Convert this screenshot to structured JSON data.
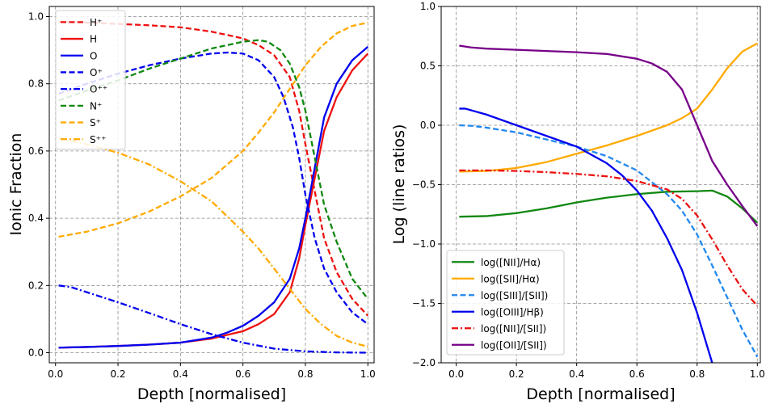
{
  "chart_data": [
    {
      "type": "line",
      "xlabel": "Depth [normalised]",
      "ylabel": "Ionic Fraction",
      "xlim": [
        -0.02,
        1.02
      ],
      "ylim": [
        -0.03,
        1.03
      ],
      "xticks": [
        0.0,
        0.2,
        0.4,
        0.6,
        0.8,
        1.0
      ],
      "yticks": [
        0.0,
        0.2,
        0.4,
        0.6,
        0.8,
        1.0
      ],
      "xtick_labels": [
        "0.0",
        "0.2",
        "0.4",
        "0.6",
        "0.8",
        "1.0"
      ],
      "ytick_labels": [
        "0.0",
        "0.2",
        "0.4",
        "0.6",
        "0.8",
        "1.0"
      ],
      "grid": true,
      "legend_position": "top-left",
      "series": [
        {
          "name": "H⁺",
          "color": "#ee1111",
          "dash": "dashed",
          "x": [
            0.01,
            0.1,
            0.2,
            0.3,
            0.4,
            0.5,
            0.6,
            0.65,
            0.7,
            0.75,
            0.78,
            0.8,
            0.83,
            0.86,
            0.9,
            0.95,
            1.0
          ],
          "y": [
            0.985,
            0.982,
            0.978,
            0.974,
            0.968,
            0.955,
            0.935,
            0.915,
            0.885,
            0.82,
            0.72,
            0.62,
            0.48,
            0.34,
            0.24,
            0.16,
            0.11
          ]
        },
        {
          "name": "H",
          "color": "#ee1111",
          "dash": "solid",
          "x": [
            0.01,
            0.1,
            0.2,
            0.3,
            0.4,
            0.5,
            0.6,
            0.65,
            0.7,
            0.75,
            0.78,
            0.8,
            0.83,
            0.86,
            0.9,
            0.95,
            1.0
          ],
          "y": [
            0.015,
            0.017,
            0.02,
            0.024,
            0.03,
            0.042,
            0.064,
            0.085,
            0.115,
            0.18,
            0.28,
            0.38,
            0.52,
            0.66,
            0.76,
            0.84,
            0.89
          ]
        },
        {
          "name": "O",
          "color": "#0000ee",
          "dash": "solid",
          "x": [
            0.01,
            0.1,
            0.2,
            0.3,
            0.4,
            0.5,
            0.55,
            0.6,
            0.65,
            0.7,
            0.75,
            0.78,
            0.8,
            0.83,
            0.86,
            0.9,
            0.95,
            1.0
          ],
          "y": [
            0.015,
            0.017,
            0.02,
            0.024,
            0.03,
            0.045,
            0.06,
            0.08,
            0.11,
            0.15,
            0.22,
            0.31,
            0.4,
            0.55,
            0.7,
            0.8,
            0.87,
            0.91
          ]
        },
        {
          "name": "O⁺",
          "color": "#0000ee",
          "dash": "dashed",
          "x": [
            0.01,
            0.1,
            0.2,
            0.3,
            0.4,
            0.5,
            0.55,
            0.6,
            0.65,
            0.7,
            0.73,
            0.76,
            0.78,
            0.8,
            0.83,
            0.86,
            0.9,
            0.95,
            1.0
          ],
          "y": [
            0.77,
            0.8,
            0.83,
            0.855,
            0.875,
            0.89,
            0.893,
            0.89,
            0.87,
            0.82,
            0.76,
            0.67,
            0.58,
            0.47,
            0.34,
            0.25,
            0.18,
            0.12,
            0.085
          ]
        },
        {
          "name": "O⁺⁺",
          "color": "#0000ee",
          "dash": "dashdot",
          "x": [
            0.01,
            0.05,
            0.1,
            0.2,
            0.3,
            0.4,
            0.5,
            0.6,
            0.7,
            0.8,
            0.9,
            1.0
          ],
          "y": [
            0.2,
            0.195,
            0.18,
            0.15,
            0.118,
            0.085,
            0.055,
            0.03,
            0.012,
            0.004,
            0.001,
            0.0
          ]
        },
        {
          "name": "N⁺",
          "color": "#118811",
          "dash": "dashed",
          "x": [
            0.01,
            0.1,
            0.2,
            0.3,
            0.4,
            0.5,
            0.6,
            0.65,
            0.68,
            0.72,
            0.75,
            0.78,
            0.8,
            0.83,
            0.86,
            0.9,
            0.95,
            1.0
          ],
          "y": [
            0.75,
            0.78,
            0.81,
            0.845,
            0.875,
            0.905,
            0.925,
            0.93,
            0.925,
            0.9,
            0.86,
            0.79,
            0.72,
            0.58,
            0.44,
            0.33,
            0.22,
            0.16
          ]
        },
        {
          "name": "S⁺",
          "color": "#ffaa00",
          "dash": "dashed",
          "x": [
            0.01,
            0.1,
            0.2,
            0.3,
            0.4,
            0.5,
            0.6,
            0.65,
            0.7,
            0.75,
            0.8,
            0.85,
            0.9,
            0.95,
            1.0
          ],
          "y": [
            0.345,
            0.36,
            0.385,
            0.42,
            0.465,
            0.52,
            0.6,
            0.655,
            0.715,
            0.785,
            0.855,
            0.91,
            0.95,
            0.972,
            0.982
          ]
        },
        {
          "name": "S⁺⁺",
          "color": "#ffaa00",
          "dash": "dashdot",
          "x": [
            0.01,
            0.1,
            0.2,
            0.3,
            0.4,
            0.5,
            0.6,
            0.65,
            0.7,
            0.75,
            0.8,
            0.85,
            0.9,
            0.95,
            1.0
          ],
          "y": [
            0.64,
            0.62,
            0.595,
            0.56,
            0.51,
            0.45,
            0.36,
            0.31,
            0.25,
            0.19,
            0.13,
            0.085,
            0.05,
            0.03,
            0.018
          ]
        }
      ]
    },
    {
      "type": "line",
      "xlabel": "Depth [normalised]",
      "ylabel": "Log (line ratios)",
      "xlim": [
        -0.05,
        1.01
      ],
      "ylim": [
        -2.0,
        1.0
      ],
      "xticks": [
        0.0,
        0.2,
        0.4,
        0.6,
        0.8,
        1.0
      ],
      "yticks": [
        -2.0,
        -1.5,
        -1.0,
        -0.5,
        0.0,
        0.5,
        1.0
      ],
      "xtick_labels": [
        "0.0",
        "0.2",
        "0.4",
        "0.6",
        "0.8",
        "1.0"
      ],
      "ytick_labels": [
        "−2.0",
        "−1.5",
        "−1.0",
        "−0.5",
        "0.0",
        "0.5",
        "1.0"
      ],
      "grid": true,
      "legend_position": "bottom-left",
      "series": [
        {
          "name": "log([NII]/Hα)",
          "color": "#118811",
          "dash": "solid",
          "x": [
            0.01,
            0.1,
            0.2,
            0.3,
            0.4,
            0.5,
            0.6,
            0.7,
            0.8,
            0.85,
            0.9,
            0.95,
            1.0
          ],
          "y": [
            -0.77,
            -0.765,
            -0.74,
            -0.7,
            -0.65,
            -0.61,
            -0.58,
            -0.56,
            -0.555,
            -0.55,
            -0.6,
            -0.7,
            -0.82
          ]
        },
        {
          "name": "log([SII]/Hα)",
          "color": "#ffaa00",
          "dash": "solid",
          "x": [
            0.01,
            0.1,
            0.2,
            0.3,
            0.4,
            0.5,
            0.6,
            0.7,
            0.75,
            0.8,
            0.85,
            0.9,
            0.95,
            1.0
          ],
          "y": [
            -0.39,
            -0.385,
            -0.36,
            -0.31,
            -0.24,
            -0.17,
            -0.09,
            0.0,
            0.06,
            0.14,
            0.3,
            0.48,
            0.62,
            0.69
          ]
        },
        {
          "name": "log([SIII]/[SII])",
          "color": "#2288ee",
          "dash": "dashed",
          "x": [
            0.01,
            0.05,
            0.1,
            0.2,
            0.3,
            0.4,
            0.5,
            0.6,
            0.7,
            0.75,
            0.8,
            0.85,
            0.9,
            0.95,
            1.0
          ],
          "y": [
            0.0,
            -0.005,
            -0.02,
            -0.06,
            -0.12,
            -0.18,
            -0.26,
            -0.38,
            -0.58,
            -0.72,
            -0.92,
            -1.18,
            -1.45,
            -1.72,
            -1.95
          ]
        },
        {
          "name": "log([OIII]/Hβ)",
          "color": "#0000ee",
          "dash": "solid",
          "x": [
            0.01,
            0.03,
            0.1,
            0.2,
            0.3,
            0.4,
            0.5,
            0.55,
            0.6,
            0.65,
            0.7,
            0.75,
            0.8,
            0.85
          ],
          "y": [
            0.14,
            0.14,
            0.09,
            0.0,
            -0.09,
            -0.18,
            -0.32,
            -0.42,
            -0.55,
            -0.72,
            -0.95,
            -1.22,
            -1.58,
            -2.0
          ]
        },
        {
          "name": "log([NII]/[SII])",
          "color": "#ee1111",
          "dash": "dashdot",
          "x": [
            0.01,
            0.1,
            0.2,
            0.3,
            0.4,
            0.5,
            0.6,
            0.7,
            0.75,
            0.8,
            0.85,
            0.9,
            0.95,
            1.0
          ],
          "y": [
            -0.38,
            -0.38,
            -0.385,
            -0.395,
            -0.41,
            -0.43,
            -0.47,
            -0.54,
            -0.62,
            -0.76,
            -0.96,
            -1.18,
            -1.38,
            -1.52
          ]
        },
        {
          "name": "log([OII]/[SII])",
          "color": "#770088",
          "dash": "solid",
          "x": [
            0.01,
            0.05,
            0.1,
            0.2,
            0.3,
            0.4,
            0.5,
            0.6,
            0.65,
            0.7,
            0.75,
            0.8,
            0.85,
            0.9,
            0.95,
            1.0
          ],
          "y": [
            0.67,
            0.655,
            0.645,
            0.635,
            0.625,
            0.615,
            0.6,
            0.56,
            0.52,
            0.45,
            0.3,
            0.0,
            -0.3,
            -0.5,
            -0.68,
            -0.85
          ]
        }
      ]
    }
  ]
}
